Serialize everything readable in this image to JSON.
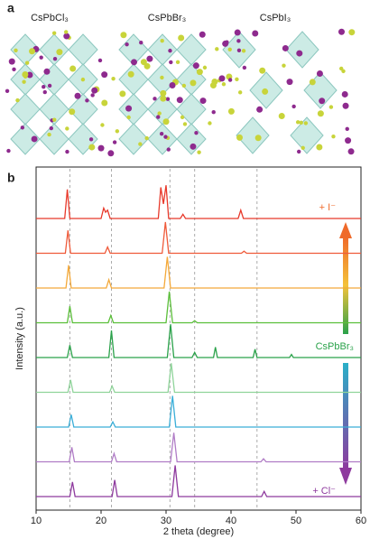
{
  "panel_a": {
    "label": "a",
    "structures": [
      "CsPbCl₃",
      "CsPbBr₃",
      "CsPbI₃"
    ]
  },
  "chart_data": {
    "type": "line",
    "panel_label": "b",
    "xlabel": "2 theta (degree)",
    "ylabel": "Intensity (a.u.)",
    "xlim": [
      10,
      60
    ],
    "xticks": [
      10,
      20,
      30,
      40,
      50,
      60
    ],
    "reference_lines": [
      15.2,
      21.6,
      30.6,
      34.4,
      44.0
    ],
    "annotations": [
      "+ I⁻",
      "CsPbBr₃",
      "+ Cl⁻"
    ],
    "series": [
      {
        "color": "#e8392b",
        "x": [
          10,
          14.4,
          14.8,
          15.2,
          20.0,
          20.4,
          20.7,
          21.0,
          21.4,
          28.8,
          29.2,
          29.6,
          30.0,
          30.4,
          32.2,
          32.6,
          33.0,
          41.1,
          41.5,
          41.9,
          60
        ],
        "values": [
          0,
          0,
          28,
          0,
          0,
          10,
          6,
          8,
          0,
          0,
          30,
          14,
          32,
          0,
          0,
          4,
          0,
          0,
          8,
          0,
          0
        ]
      },
      {
        "color": "#ef5a3a",
        "x": [
          10,
          14.5,
          14.9,
          15.3,
          20.6,
          21.0,
          21.4,
          29.4,
          29.9,
          30.4,
          41.6,
          42.0,
          42.4,
          60
        ],
        "values": [
          0,
          0,
          22,
          0,
          0,
          6,
          0,
          0,
          30,
          0,
          0,
          2,
          0,
          0
        ]
      },
      {
        "color": "#f4a93a",
        "x": [
          10,
          14.6,
          15.0,
          15.4,
          20.8,
          21.2,
          21.6,
          29.7,
          30.2,
          30.7,
          60
        ],
        "values": [
          0,
          0,
          22,
          0,
          0,
          8,
          0,
          0,
          30,
          0,
          0
        ]
      },
      {
        "color": "#5bbf3a",
        "x": [
          10,
          14.8,
          15.2,
          15.6,
          21.1,
          21.5,
          21.9,
          30.0,
          30.5,
          31.0,
          34.0,
          34.4,
          34.8,
          60
        ],
        "values": [
          0,
          0,
          16,
          0,
          0,
          7,
          0,
          0,
          30,
          0,
          0,
          2,
          0,
          0
        ]
      },
      {
        "color": "#2aa24a",
        "x": [
          10,
          14.8,
          15.2,
          15.6,
          21.2,
          21.6,
          22.0,
          30.2,
          30.7,
          31.2,
          34.0,
          34.4,
          34.8,
          37.3,
          37.6,
          37.9,
          43.4,
          43.7,
          44.0,
          49.0,
          49.3,
          49.6,
          60
        ],
        "values": [
          0,
          0,
          12,
          0,
          0,
          26,
          0,
          0,
          32,
          0,
          0,
          5,
          0,
          0,
          10,
          0,
          0,
          8,
          0,
          0,
          3,
          0,
          0
        ]
      },
      {
        "color": "#8fd49a",
        "x": [
          10,
          14.9,
          15.3,
          15.7,
          21.3,
          21.7,
          22.1,
          30.3,
          30.8,
          31.3,
          60
        ],
        "values": [
          0,
          0,
          12,
          0,
          0,
          6,
          0,
          0,
          28,
          0,
          0
        ]
      },
      {
        "color": "#3aaed8",
        "x": [
          10,
          15.0,
          15.4,
          15.8,
          21.4,
          21.8,
          22.2,
          30.5,
          31.0,
          31.5,
          60
        ],
        "values": [
          0,
          0,
          12,
          0,
          0,
          5,
          0,
          0,
          30,
          0,
          0
        ]
      },
      {
        "color": "#b07cc6",
        "x": [
          10,
          15.1,
          15.5,
          15.9,
          21.6,
          22.0,
          22.4,
          30.7,
          31.2,
          31.7,
          44.6,
          45.0,
          45.4,
          60
        ],
        "values": [
          0,
          0,
          14,
          0,
          0,
          8,
          0,
          0,
          28,
          0,
          0,
          3,
          0,
          0
        ]
      },
      {
        "color": "#8e3a9e",
        "x": [
          10,
          15.2,
          15.6,
          16.0,
          21.7,
          22.1,
          22.5,
          30.9,
          31.4,
          31.9,
          44.7,
          45.1,
          45.5,
          60
        ],
        "values": [
          0,
          0,
          14,
          0,
          0,
          16,
          0,
          0,
          30,
          0,
          0,
          5,
          0,
          0
        ]
      }
    ]
  }
}
